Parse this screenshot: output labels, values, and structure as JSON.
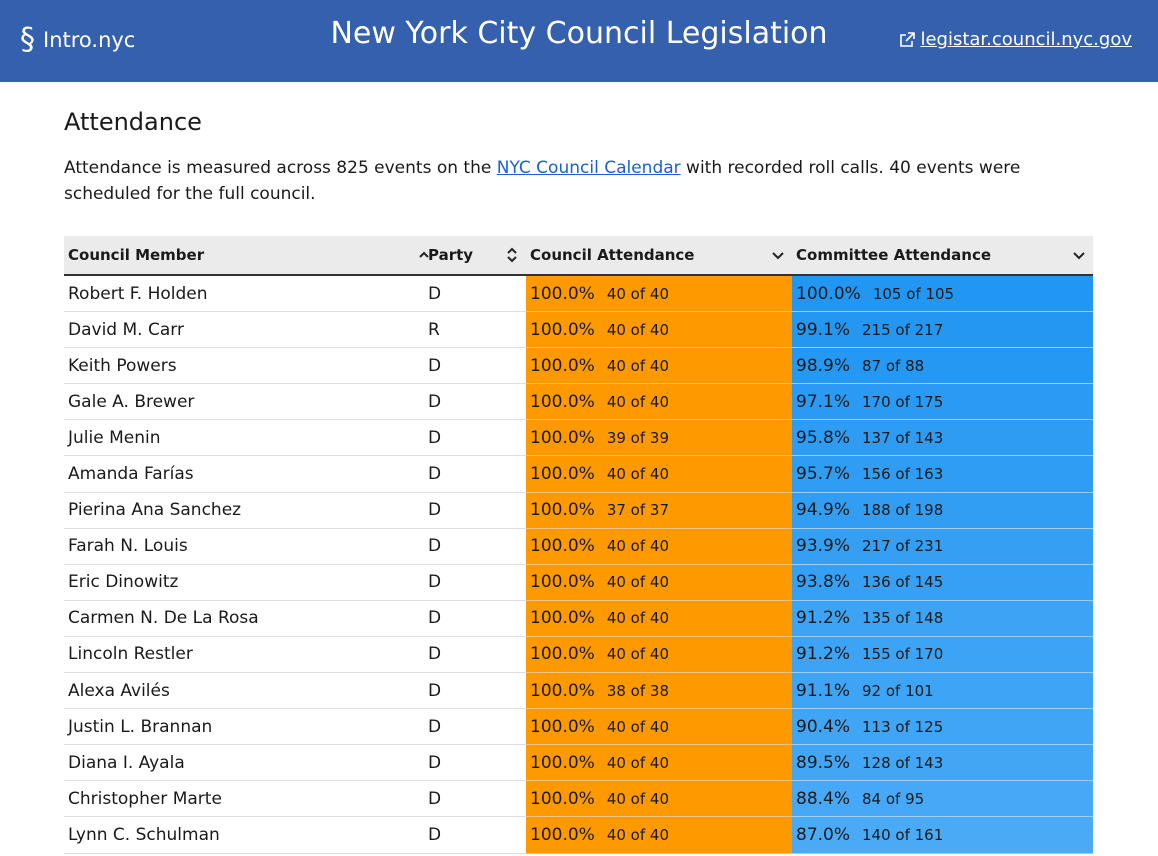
{
  "header": {
    "logo_icon": "§",
    "logo": "Intro.nyc",
    "title": "New York City Council Legislation",
    "link": "legistar.council.nyc.gov"
  },
  "section": {
    "heading": "Attendance",
    "intro": {
      "before": "Attendance is measured across 825 events on the ",
      "link": "NYC Council Calendar",
      "after": " with recorded roll calls. 40 events were scheduled for the full council."
    }
  },
  "table": {
    "columns": [
      "Council Member",
      "Party",
      "Council Attendance",
      "Committee Attendance"
    ],
    "rows": [
      [
        "Robert F. Holden",
        "D",
        "100.0%",
        "40 of 40",
        "100.0%",
        "105 of 105"
      ],
      [
        "David M. Carr",
        "R",
        "100.0%",
        "40 of 40",
        "99.1%",
        "215 of 217"
      ],
      [
        "Keith Powers",
        "D",
        "100.0%",
        "40 of 40",
        "98.9%",
        "87 of 88"
      ],
      [
        "Gale A. Brewer",
        "D",
        "100.0%",
        "40 of 40",
        "97.1%",
        "170 of 175"
      ],
      [
        "Julie Menin",
        "D",
        "100.0%",
        "39 of 39",
        "95.8%",
        "137 of 143"
      ],
      [
        "Amanda Farías",
        "D",
        "100.0%",
        "40 of 40",
        "95.7%",
        "156 of 163"
      ],
      [
        "Pierina Ana Sanchez",
        "D",
        "100.0%",
        "37 of 37",
        "94.9%",
        "188 of 198"
      ],
      [
        "Farah N. Louis",
        "D",
        "100.0%",
        "40 of 40",
        "93.9%",
        "217 of 231"
      ],
      [
        "Eric Dinowitz",
        "D",
        "100.0%",
        "40 of 40",
        "93.8%",
        "136 of 145"
      ],
      [
        "Carmen N. De La Rosa",
        "D",
        "100.0%",
        "40 of 40",
        "91.2%",
        "135 of 148"
      ],
      [
        "Lincoln Restler",
        "D",
        "100.0%",
        "40 of 40",
        "91.2%",
        "155 of 170"
      ],
      [
        "Alexa Avilés",
        "D",
        "100.0%",
        "38 of 38",
        "91.1%",
        "92 of 101"
      ],
      [
        "Justin L. Brannan",
        "D",
        "100.0%",
        "40 of 40",
        "90.4%",
        "113 of 125"
      ],
      [
        "Diana I. Ayala",
        "D",
        "100.0%",
        "40 of 40",
        "89.5%",
        "128 of 143"
      ],
      [
        "Christopher Marte",
        "D",
        "100.0%",
        "40 of 40",
        "88.4%",
        "84 of 95"
      ],
      [
        "Lynn C. Schulman",
        "D",
        "100.0%",
        "40 of 40",
        "87.0%",
        "140 of 161"
      ]
    ]
  }
}
